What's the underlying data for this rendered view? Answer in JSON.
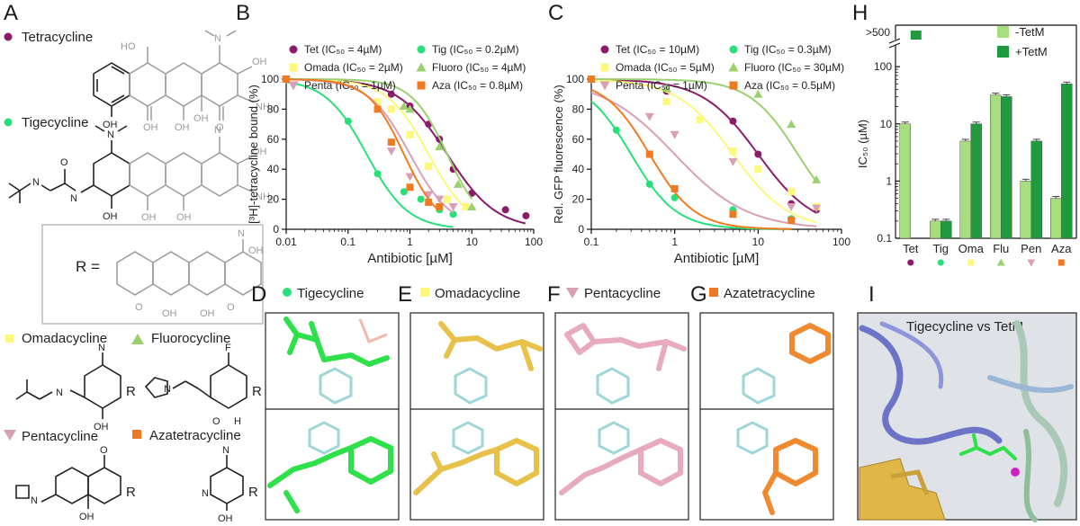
{
  "panels": {
    "A": "A",
    "B": "B",
    "C": "C",
    "D": "D",
    "E": "E",
    "F": "F",
    "G": "G",
    "H": "H",
    "I": "I"
  },
  "structures": {
    "tetracycline": "Tetracycline",
    "tigecycline": "Tigecycline",
    "r_label": "R",
    "r_eq": "R  =",
    "omadacycline": "Omadacycline",
    "fluorocycline": "Fluorocycline",
    "pentacycline": "Pentacycline",
    "azatetracycline": "Azatetracycline",
    "atoms": {
      "oh": "OH",
      "ho": "HO",
      "o": "O",
      "nh2": "NH₂",
      "n": "N",
      "h": "H",
      "f": "F"
    }
  },
  "markers": {
    "tetracycline": "#8b1a6b",
    "tigecycline": "#27e07a",
    "omadacycline": "#fdf87a",
    "fluorocycline": "#9ad16e",
    "pentacycline": "#d9a0b5",
    "azatetracycline": "#f07a22"
  },
  "chart_data": [
    {
      "id": "B",
      "type": "scatter",
      "xlabel": "Antibiotic [µM]",
      "ylabel": "[³H]-tetracycline bound (%)",
      "xscale": "log",
      "xlim": [
        0.01,
        100
      ],
      "ylim": [
        0,
        100
      ],
      "xticks": [
        "0.01",
        "0.1",
        "1",
        "10",
        "100"
      ],
      "yticks": [
        "0",
        "20",
        "40",
        "60",
        "80",
        "100"
      ],
      "series": [
        {
          "name": "Tet (IC₅₀ = 4µM)",
          "key": "tetracycline",
          "marker": "circle",
          "ic50": 4,
          "hill": 1.1,
          "x": [
            0.01,
            0.5,
            1,
            2,
            3,
            5,
            10,
            35,
            75
          ],
          "y": [
            100,
            90,
            82,
            70,
            60,
            40,
            24,
            13,
            9
          ]
        },
        {
          "name": "Tig (IC₅₀ = 0.2µM)",
          "key": "tigecycline",
          "marker": "circle",
          "ic50": 0.2,
          "hill": 1.3,
          "x": [
            0.01,
            0.1,
            0.3,
            0.8,
            1.5,
            3,
            5
          ],
          "y": [
            100,
            72,
            37,
            25,
            20,
            13,
            10
          ]
        },
        {
          "name": "Omada (IC₅₀ = 2µM)",
          "key": "omadacycline",
          "marker": "square",
          "ic50": 2,
          "hill": 1.3,
          "x": [
            0.01,
            0.3,
            0.5,
            1,
            2,
            4,
            8
          ],
          "y": [
            100,
            85,
            80,
            63,
            42,
            20,
            15
          ]
        },
        {
          "name": "Fluoro (IC₅₀ = 4µM)",
          "key": "fluorocycline",
          "marker": "triangle",
          "ic50": 4,
          "hill": 1.5,
          "x": [
            0.01,
            0.8,
            1,
            3,
            6,
            10
          ],
          "y": [
            100,
            82,
            80,
            55,
            30,
            15
          ]
        },
        {
          "name": "Penta (IC₅₀ = 1µM)",
          "key": "pentacycline",
          "marker": "triangle-down",
          "ic50": 1,
          "hill": 1.3,
          "x": [
            0.01,
            0.5,
            1,
            2,
            3,
            5
          ],
          "y": [
            100,
            52,
            35,
            23,
            20,
            15
          ]
        },
        {
          "name": "Aza (IC₅₀ = 0.8µM)",
          "key": "azatetracycline",
          "marker": "square",
          "ic50": 0.8,
          "hill": 1.5,
          "x": [
            0.01,
            0.3,
            0.5,
            1,
            2,
            3
          ],
          "y": [
            100,
            80,
            58,
            28,
            18,
            15
          ]
        }
      ]
    },
    {
      "id": "C",
      "type": "scatter",
      "xlabel": "Antibiotic [µM]",
      "ylabel": "Rel. GFP fluorescence (%)",
      "xscale": "log",
      "xlim": [
        0.1,
        100
      ],
      "ylim": [
        0,
        100
      ],
      "xticks": [
        "0.1",
        "1",
        "10",
        "100"
      ],
      "yticks": [
        "0",
        "20",
        "40",
        "60",
        "80",
        "100"
      ],
      "series": [
        {
          "name": "Tet (IC₅₀ = 10µM)",
          "key": "tetracycline",
          "marker": "circle",
          "ic50": 10,
          "hill": 1.3,
          "x": [
            0.1,
            0.8,
            5,
            10,
            25,
            50
          ],
          "y": [
            100,
            92,
            72,
            50,
            17,
            13
          ]
        },
        {
          "name": "Tig (IC₅₀ = 0.3µM)",
          "key": "tigecycline",
          "marker": "circle",
          "ic50": 0.3,
          "hill": 1.6,
          "x": [
            0.1,
            0.2,
            0.5,
            1,
            5,
            25
          ],
          "y": [
            100,
            66,
            30,
            21,
            13,
            7
          ]
        },
        {
          "name": "Omada (IC₅₀ = 5µM)",
          "key": "omadacycline",
          "marker": "square",
          "ic50": 5,
          "hill": 1.3,
          "x": [
            0.1,
            0.8,
            2,
            5,
            10,
            25,
            50
          ],
          "y": [
            100,
            85,
            73,
            52,
            40,
            25,
            15
          ]
        },
        {
          "name": "Fluoro (IC₅₀ = 30µM)",
          "key": "fluorocycline",
          "marker": "triangle",
          "ic50": 30,
          "hill": 1.5,
          "x": [
            0.1,
            0.8,
            10,
            25,
            50
          ],
          "y": [
            100,
            94,
            90,
            70,
            33
          ]
        },
        {
          "name": "Penta (IC₅₀ = 1µM)",
          "key": "pentacycline",
          "marker": "triangle-down",
          "ic50": 1,
          "hill": 1.0,
          "x": [
            0.1,
            0.5,
            1,
            5,
            25,
            50
          ],
          "y": [
            100,
            75,
            63,
            45,
            15,
            14
          ]
        },
        {
          "name": "Aza (IC₅₀ = 0.5µM)",
          "key": "azatetracycline",
          "marker": "square",
          "ic50": 0.5,
          "hill": 1.6,
          "x": [
            0.1,
            0.5,
            1,
            5,
            25
          ],
          "y": [
            100,
            50,
            27,
            10,
            6
          ]
        }
      ]
    },
    {
      "id": "H",
      "type": "bar",
      "yscale": "log",
      "ylabel": "IC₅₀ (µM)",
      "ylim": [
        0.1,
        200
      ],
      "yticks": [
        "0.1",
        "1",
        "10",
        "100"
      ],
      "break_label": ">500",
      "categories": [
        "Tet",
        "Tig",
        "Oma",
        "Flu",
        "Pen",
        "Aza"
      ],
      "category_keys": [
        "tetracycline",
        "tigecycline",
        "omadacycline",
        "fluorocycline",
        "pentacycline",
        "azatetracycline"
      ],
      "series": [
        {
          "name": "-TetM",
          "color": "#a6dd7e",
          "values": [
            10,
            0.2,
            5,
            32,
            1,
            0.5
          ]
        },
        {
          "name": "+TetM",
          "color": "#1f9a3e",
          "values": [
            ">500",
            0.2,
            10,
            30,
            5,
            50
          ]
        }
      ]
    }
  ],
  "views": {
    "D": {
      "title": "Tigecycline",
      "key": "tigecycline"
    },
    "E": {
      "title": "Omadacycline",
      "key": "omadacycline"
    },
    "F": {
      "title": "Pentacycline",
      "key": "pentacycline"
    },
    "G": {
      "title": "Azatetracycline",
      "key": "azatetracycline"
    },
    "I": {
      "title": "Tigecycline vs TetM"
    }
  }
}
